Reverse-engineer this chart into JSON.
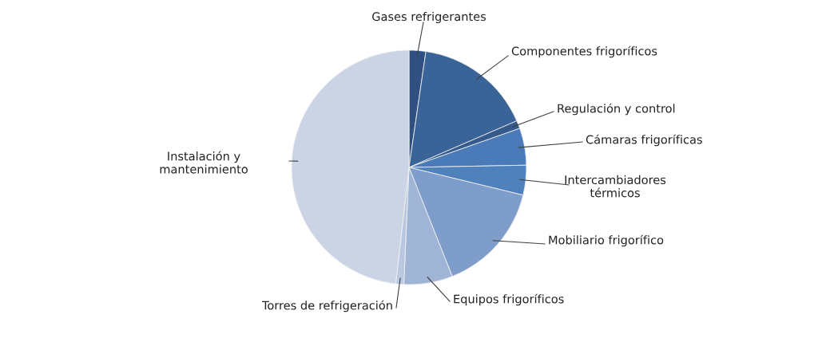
{
  "chart_data": {
    "type": "pie",
    "categories": [
      "Gases refrigerantes",
      "Componentes frigoríficos",
      "Regulación y control",
      "Cámaras frigoríficas",
      "Intercambiadores\ntérmicos",
      "Mobiliario frigorífico",
      "Equipos frigoríficos",
      "Torres de refrigeración",
      "Instalación y\nmantenimiento"
    ],
    "values": [
      2.3,
      16.2,
      1.1,
      5.1,
      4.1,
      15.2,
      6.7,
      1.1,
      48.2
    ],
    "colors": [
      "#2f5080",
      "#3a6397",
      "#35598a",
      "#4a7ab8",
      "#4f81bd",
      "#7f9dcb",
      "#a0b4d6",
      "#b9c7e0",
      "#cbd4e5"
    ],
    "legend": false
  }
}
